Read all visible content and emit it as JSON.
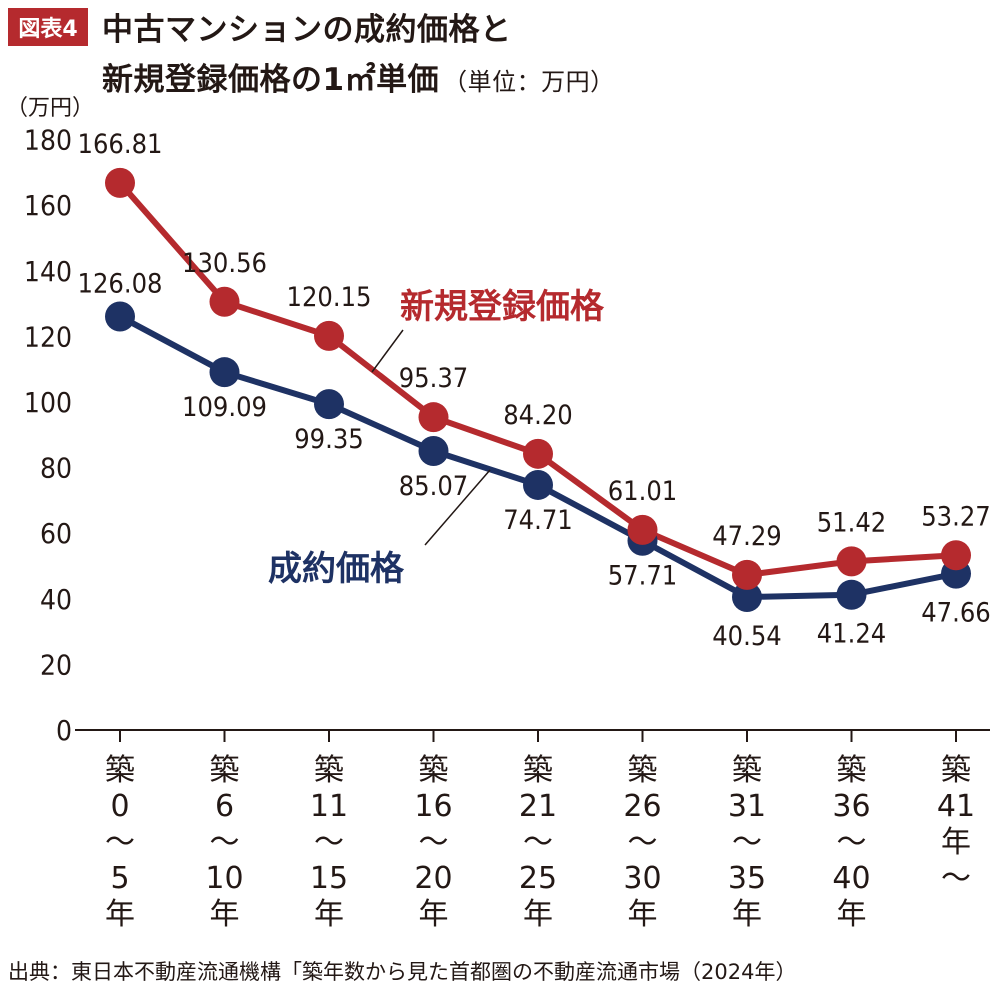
{
  "badge": "図表4",
  "title_line1": "中古マンションの成約価格と",
  "title_line2": "新規登録価格の1㎡単価",
  "unit_note": "（単位：万円）",
  "y_unit": "（万円）",
  "source": "出典：東日本不動産流通機構「築年数から見た首都圏の不動産流通市場（2024年）",
  "colors": {
    "new_listing": "#b52a2e",
    "contract": "#1e3264",
    "badge": "#b52a2e"
  },
  "chart_data": {
    "type": "line",
    "categories": [
      [
        "築",
        "0",
        "～",
        "5",
        "年"
      ],
      [
        "築",
        "6",
        "～",
        "10",
        "年"
      ],
      [
        "築",
        "11",
        "～",
        "15",
        "年"
      ],
      [
        "築",
        "16",
        "～",
        "20",
        "年"
      ],
      [
        "築",
        "21",
        "～",
        "25",
        "年"
      ],
      [
        "築",
        "26",
        "～",
        "30",
        "年"
      ],
      [
        "築",
        "31",
        "～",
        "35",
        "年"
      ],
      [
        "築",
        "36",
        "～",
        "40",
        "年"
      ],
      [
        "築",
        "41",
        "年",
        "～"
      ]
    ],
    "series": [
      {
        "name": "新規登録価格",
        "values": [
          166.81,
          130.56,
          120.15,
          95.37,
          84.2,
          61.01,
          47.29,
          51.42,
          53.27
        ],
        "labels": [
          "166.81",
          "130.56",
          "120.15",
          "95.37",
          "84.20",
          "61.01",
          "47.29",
          "51.42",
          "53.27"
        ]
      },
      {
        "name": "成約価格",
        "values": [
          126.08,
          109.09,
          99.35,
          85.07,
          74.71,
          57.71,
          40.54,
          41.24,
          47.66
        ],
        "labels": [
          "126.08",
          "109.09",
          "99.35",
          "85.07",
          "74.71",
          "57.71",
          "40.54",
          "41.24",
          "47.66"
        ]
      }
    ],
    "ylim": [
      0,
      180
    ],
    "yticks": [
      "0",
      "20",
      "40",
      "60",
      "80",
      "100",
      "120",
      "140",
      "160",
      "180"
    ],
    "grid": false,
    "legend": "inline-labels"
  }
}
